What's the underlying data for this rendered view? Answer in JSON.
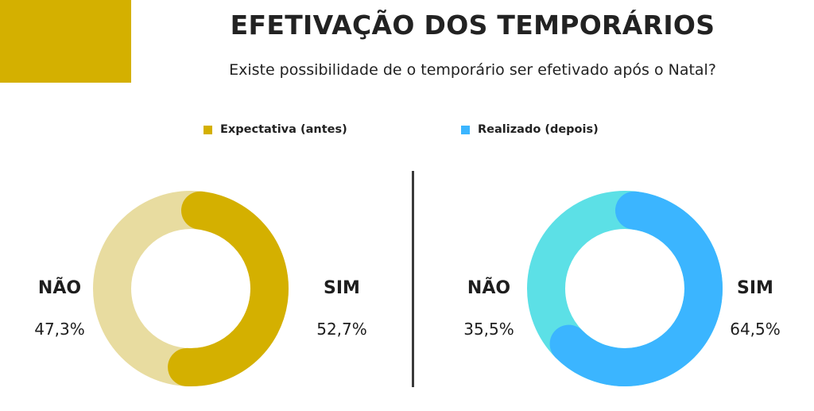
{
  "title": "EFETIVAÇÃO DOS TEMPORÁRIOS",
  "subtitle": "Existe possibilidade de o temporário ser efetivado após o Natal?",
  "colors": {
    "accent": "#D4B000",
    "expectativa_sim": "#D4B000",
    "expectativa_nao": "#E8DCA0",
    "realizado_sim": "#3BB5FF",
    "realizado_nao": "#5CE0E6"
  },
  "legend": [
    {
      "label": "Expectativa (antes)",
      "color": "#D4B000"
    },
    {
      "label": "Realizado (depois)",
      "color": "#3BB5FF"
    }
  ],
  "chart_data": [
    {
      "type": "pie",
      "series_name": "Expectativa (antes)",
      "categories": [
        "NÃO",
        "SIM"
      ],
      "values": [
        47.3,
        52.7
      ],
      "value_labels": [
        "47,3%",
        "52,7%"
      ],
      "colors": [
        "#E8DCA0",
        "#D4B000"
      ]
    },
    {
      "type": "pie",
      "series_name": "Realizado (depois)",
      "categories": [
        "NÃO",
        "SIM"
      ],
      "values": [
        35.5,
        64.5
      ],
      "value_labels": [
        "35,5%",
        "64,5%"
      ],
      "colors": [
        "#5CE0E6",
        "#3BB5FF"
      ]
    }
  ]
}
